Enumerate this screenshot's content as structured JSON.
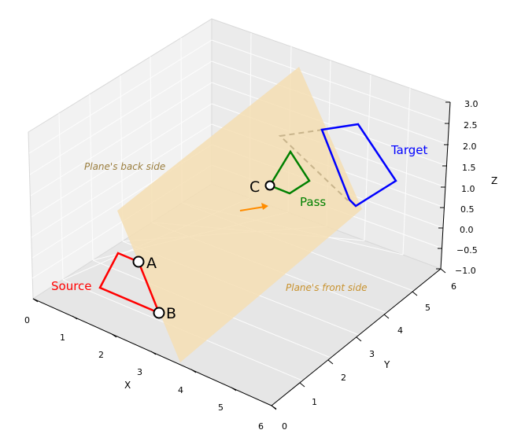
{
  "axes": {
    "x": {
      "label": "X",
      "ticks": [
        "0",
        "1",
        "2",
        "3",
        "4",
        "5",
        "6"
      ]
    },
    "y": {
      "label": "Y",
      "ticks": [
        "0",
        "1",
        "2",
        "3",
        "4",
        "5",
        "6"
      ]
    },
    "z": {
      "label": "Z",
      "ticks": [
        "−1.0",
        "−0.5",
        "0.0",
        "0.5",
        "1.0",
        "1.5",
        "2.0",
        "2.5",
        "3.0"
      ]
    }
  },
  "labels": {
    "source": "Source",
    "target": "Target",
    "pass": "Pass",
    "point_a": "A",
    "point_b": "B",
    "point_c": "C",
    "back_side": "Plane's back side",
    "front_side": "Plane's front side"
  },
  "colors": {
    "source": "#ff0000",
    "target": "#0000ff",
    "pass": "#008000",
    "plane": "#f5deb3",
    "arrow": "#ff8c00",
    "side_text": "#9b7e3e",
    "dashed": "#c8b48c"
  }
}
